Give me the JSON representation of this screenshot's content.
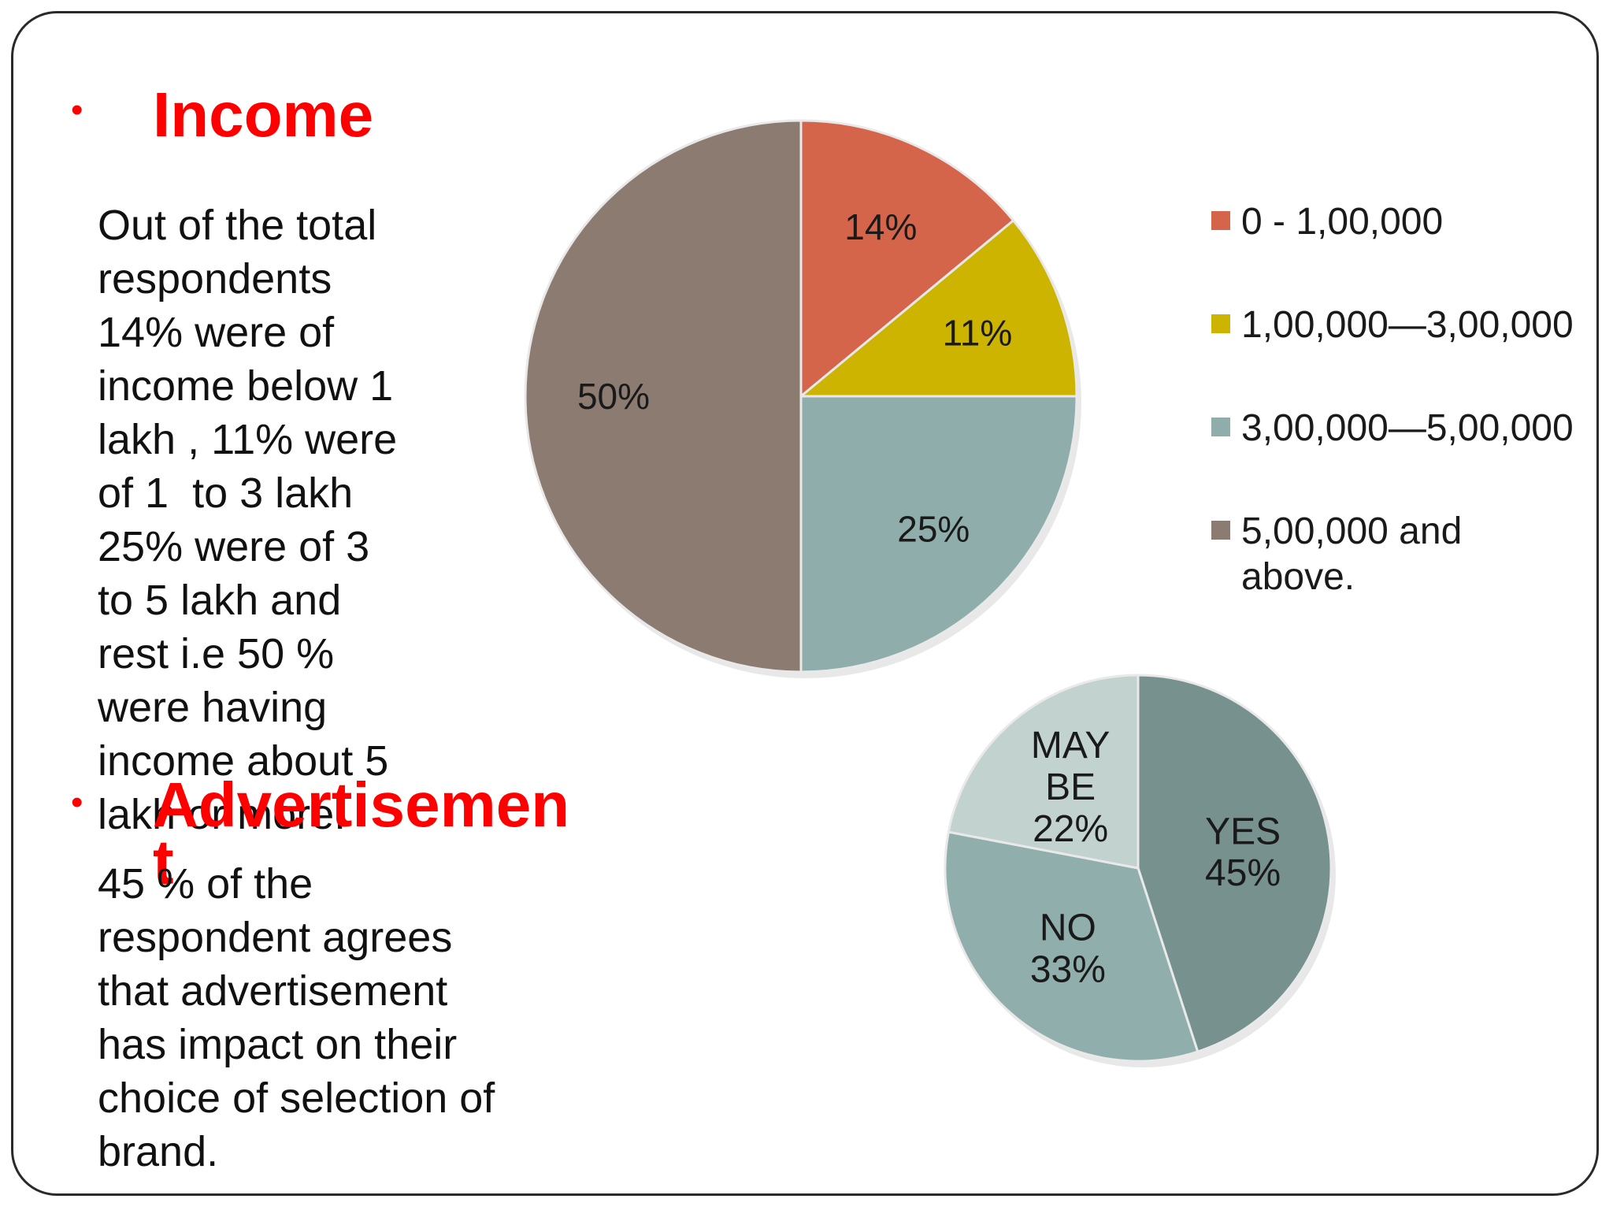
{
  "slide": {
    "bullet_char": "•",
    "income_heading": "Income",
    "income_body": "Out of the total\nrespondents\n14% were of\nincome below 1\nlakh , 11% were\nof 1  to 3 lakh\n25% were of 3\nto 5 lakh and\nrest i.e 50 %\nwere having\nincome about 5\nlakh or more.",
    "advert_heading_line1": "Advertisemen",
    "advert_heading_line2": "t",
    "advert_body": "45 % of the\nrespondent agrees\nthat advertisement\nhas impact on their\nchoice of selection of\nbrand."
  },
  "chart_data": [
    {
      "type": "pie",
      "categories": [
        "0 - 1,00,000",
        "1,00,000—3,00,000",
        "3,00,000—5,00,000",
        "5,00,000 and above."
      ],
      "values": [
        14,
        11,
        25,
        50
      ],
      "data_labels": [
        "14%",
        "11%",
        "25%",
        "50%"
      ],
      "colors": [
        "#d4644a",
        "#cdb400",
        "#8fadab",
        "#8c7b71"
      ],
      "legend": "right",
      "legend_lines": [
        [
          "0 - 1,00,000"
        ],
        [
          "1,00,000—3,00,000"
        ],
        [
          "3,00,000—5,00,000"
        ],
        [
          "5,00,000 and",
          "above."
        ]
      ]
    },
    {
      "type": "pie",
      "categories": [
        "YES",
        "NO",
        "MAY BE"
      ],
      "values": [
        45,
        33,
        22
      ],
      "data_labels": [
        [
          "YES",
          "45%"
        ],
        [
          "NO",
          "33%"
        ],
        [
          "MAY",
          "BE",
          "22%"
        ]
      ],
      "colors": [
        "#76918e",
        "#90aeac",
        "#c2d2cf"
      ],
      "legend": "none"
    }
  ]
}
